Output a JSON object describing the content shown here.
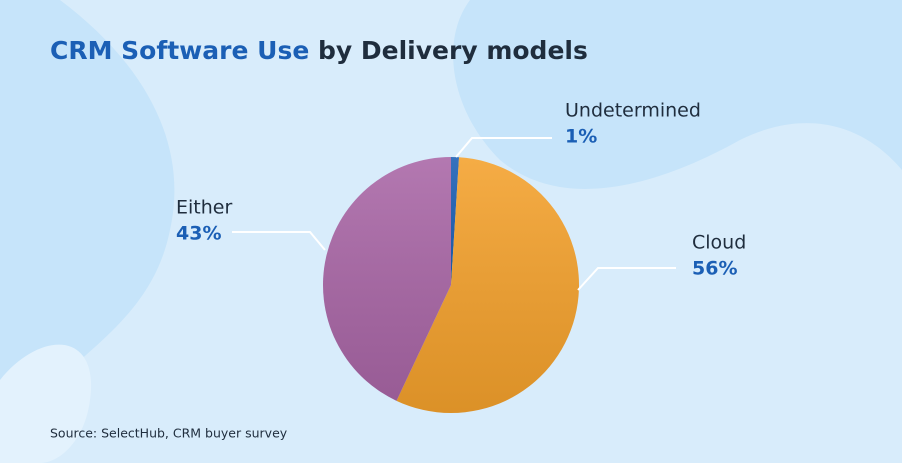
{
  "chart_data": {
    "type": "pie",
    "title": {
      "highlight": "CRM Software Use",
      "rest": "by Delivery models"
    },
    "categories": [
      "Undetermined",
      "Cloud",
      "Either"
    ],
    "values": [
      1,
      56,
      43
    ],
    "value_labels": [
      "1%",
      "56%",
      "43%"
    ],
    "colors": [
      "#1b5fb5",
      "#f4a12c",
      "#a966a6"
    ],
    "source": "Source: SelectHub, CRM buyer survey"
  }
}
